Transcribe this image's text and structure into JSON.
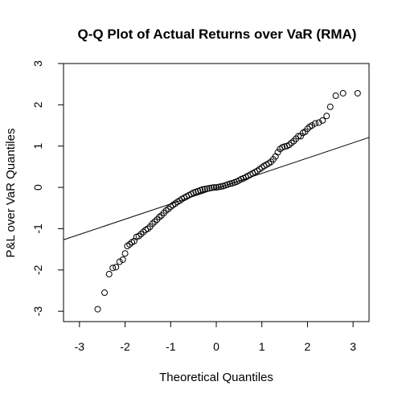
{
  "chart_data": {
    "type": "scatter",
    "title": "Q-Q Plot of Actual Returns over VaR (RMA)",
    "xlabel": "Theoretical Quantiles",
    "ylabel": "P&L over VaR Quantiles",
    "xlim": [
      -3.35,
      3.35
    ],
    "ylim": [
      -3.25,
      3.0
    ],
    "xticks": [
      -3,
      -2,
      -1,
      0,
      1,
      2,
      3
    ],
    "xtick_labels": [
      "-3",
      "-2",
      "-1",
      "0",
      "1",
      "2",
      "3"
    ],
    "yticks": [
      -3,
      -2,
      -1,
      0,
      1,
      2,
      3
    ],
    "ytick_labels": [
      "-3",
      "-2",
      "-1",
      "0",
      "1",
      "2",
      "3"
    ],
    "grid": false,
    "reference_line": {
      "intercept": -0.03,
      "slope": 0.37
    },
    "series": [
      {
        "marker": "open-circle",
        "x": [
          -2.6,
          -2.45,
          -2.35,
          -2.27,
          -2.2,
          -2.12,
          -2.05,
          -2.0,
          -1.95,
          -1.9,
          -1.85,
          -1.8,
          -1.75,
          -1.7,
          -1.65,
          -1.6,
          -1.55,
          -1.5,
          -1.45,
          -1.4,
          -1.35,
          -1.3,
          -1.25,
          -1.2,
          -1.15,
          -1.1,
          -1.05,
          -1.0,
          -0.95,
          -0.9,
          -0.85,
          -0.8,
          -0.75,
          -0.7,
          -0.65,
          -0.6,
          -0.55,
          -0.5,
          -0.45,
          -0.4,
          -0.35,
          -0.3,
          -0.25,
          -0.2,
          -0.15,
          -0.1,
          -0.05,
          0.0,
          0.05,
          0.1,
          0.15,
          0.2,
          0.25,
          0.3,
          0.35,
          0.4,
          0.45,
          0.5,
          0.55,
          0.6,
          0.65,
          0.7,
          0.75,
          0.8,
          0.85,
          0.9,
          0.95,
          1.0,
          1.05,
          1.1,
          1.15,
          1.2,
          1.25,
          1.3,
          1.35,
          1.4,
          1.45,
          1.5,
          1.55,
          1.6,
          1.65,
          1.7,
          1.75,
          1.8,
          1.85,
          1.9,
          1.95,
          2.0,
          2.05,
          2.1,
          2.17,
          2.25,
          2.33,
          2.42,
          2.5,
          2.62,
          2.78,
          3.1
        ],
        "y": [
          -2.95,
          -2.55,
          -2.1,
          -1.95,
          -1.93,
          -1.8,
          -1.75,
          -1.6,
          -1.42,
          -1.38,
          -1.33,
          -1.3,
          -1.2,
          -1.18,
          -1.13,
          -1.08,
          -1.03,
          -1.0,
          -0.95,
          -0.88,
          -0.83,
          -0.78,
          -0.72,
          -0.68,
          -0.62,
          -0.56,
          -0.52,
          -0.47,
          -0.43,
          -0.39,
          -0.35,
          -0.32,
          -0.28,
          -0.25,
          -0.22,
          -0.19,
          -0.16,
          -0.13,
          -0.11,
          -0.09,
          -0.07,
          -0.05,
          -0.04,
          -0.03,
          -0.02,
          -0.01,
          0.0,
          0.0,
          0.01,
          0.02,
          0.03,
          0.05,
          0.07,
          0.09,
          0.1,
          0.12,
          0.14,
          0.17,
          0.2,
          0.22,
          0.25,
          0.28,
          0.31,
          0.34,
          0.37,
          0.4,
          0.44,
          0.48,
          0.52,
          0.55,
          0.58,
          0.62,
          0.68,
          0.75,
          0.85,
          0.93,
          0.97,
          0.99,
          1.0,
          1.03,
          1.08,
          1.12,
          1.18,
          1.24,
          1.24,
          1.32,
          1.35,
          1.42,
          1.47,
          1.5,
          1.55,
          1.57,
          1.62,
          1.73,
          1.95,
          2.22,
          2.28,
          2.28
        ]
      }
    ]
  }
}
